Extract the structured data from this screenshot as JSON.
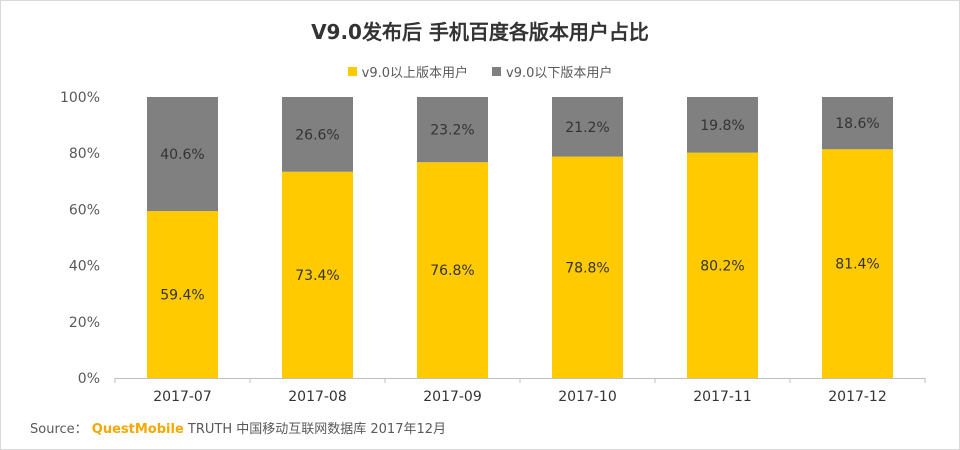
{
  "colors": {
    "above": "#FFCA00",
    "below": "#808080",
    "axis": "#bfbfbf",
    "text": "#595959",
    "brand": "#f5a800"
  },
  "source": {
    "label": "Source：",
    "brand": "QuestMobile",
    "rest": "TRUTH 中国移动互联网数据库 2017年12月"
  },
  "chart_data": {
    "type": "bar",
    "stacked": true,
    "percent": true,
    "title": "V9.0发布后 手机百度各版本用户占比",
    "categories": [
      "2017-07",
      "2017-08",
      "2017-09",
      "2017-10",
      "2017-11",
      "2017-12"
    ],
    "series": [
      {
        "name": "v9.0以上版本用户",
        "color": "#FFCA00",
        "values": [
          59.4,
          73.4,
          76.8,
          78.8,
          80.2,
          81.4
        ]
      },
      {
        "name": "v9.0以下版本用户",
        "color": "#808080",
        "values": [
          40.6,
          26.6,
          23.2,
          21.2,
          19.8,
          18.6
        ]
      }
    ],
    "ylim": [
      0,
      100
    ],
    "yticks": [
      "0%",
      "20%",
      "40%",
      "60%",
      "80%",
      "100%"
    ],
    "legend": "top-center",
    "grid": false
  }
}
